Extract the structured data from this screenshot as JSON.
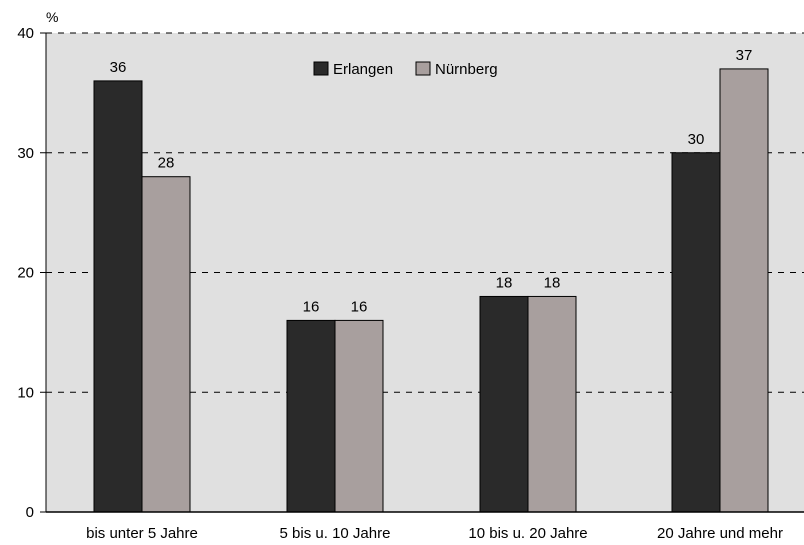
{
  "chart_data": {
    "type": "bar",
    "title": "",
    "xlabel": "",
    "ylabel": "%",
    "ylim": [
      0,
      40
    ],
    "yticks": [
      0,
      10,
      20,
      30,
      40
    ],
    "grid": "horizontal dashed",
    "legend_position": "top-center",
    "categories": [
      "bis unter 5 Jahre",
      "5 bis u. 10 Jahre",
      "10 bis u. 20 Jahre",
      "20 Jahre und mehr"
    ],
    "series": [
      {
        "name": "Erlangen",
        "values": [
          36,
          16,
          18,
          30
        ],
        "color": "#2a2a2a"
      },
      {
        "name": "Nürnberg",
        "values": [
          28,
          16,
          18,
          37
        ],
        "color": "#a89f9e"
      }
    ]
  },
  "colors": {
    "plot_background": "#e0e0e0",
    "grid": "#000000"
  }
}
